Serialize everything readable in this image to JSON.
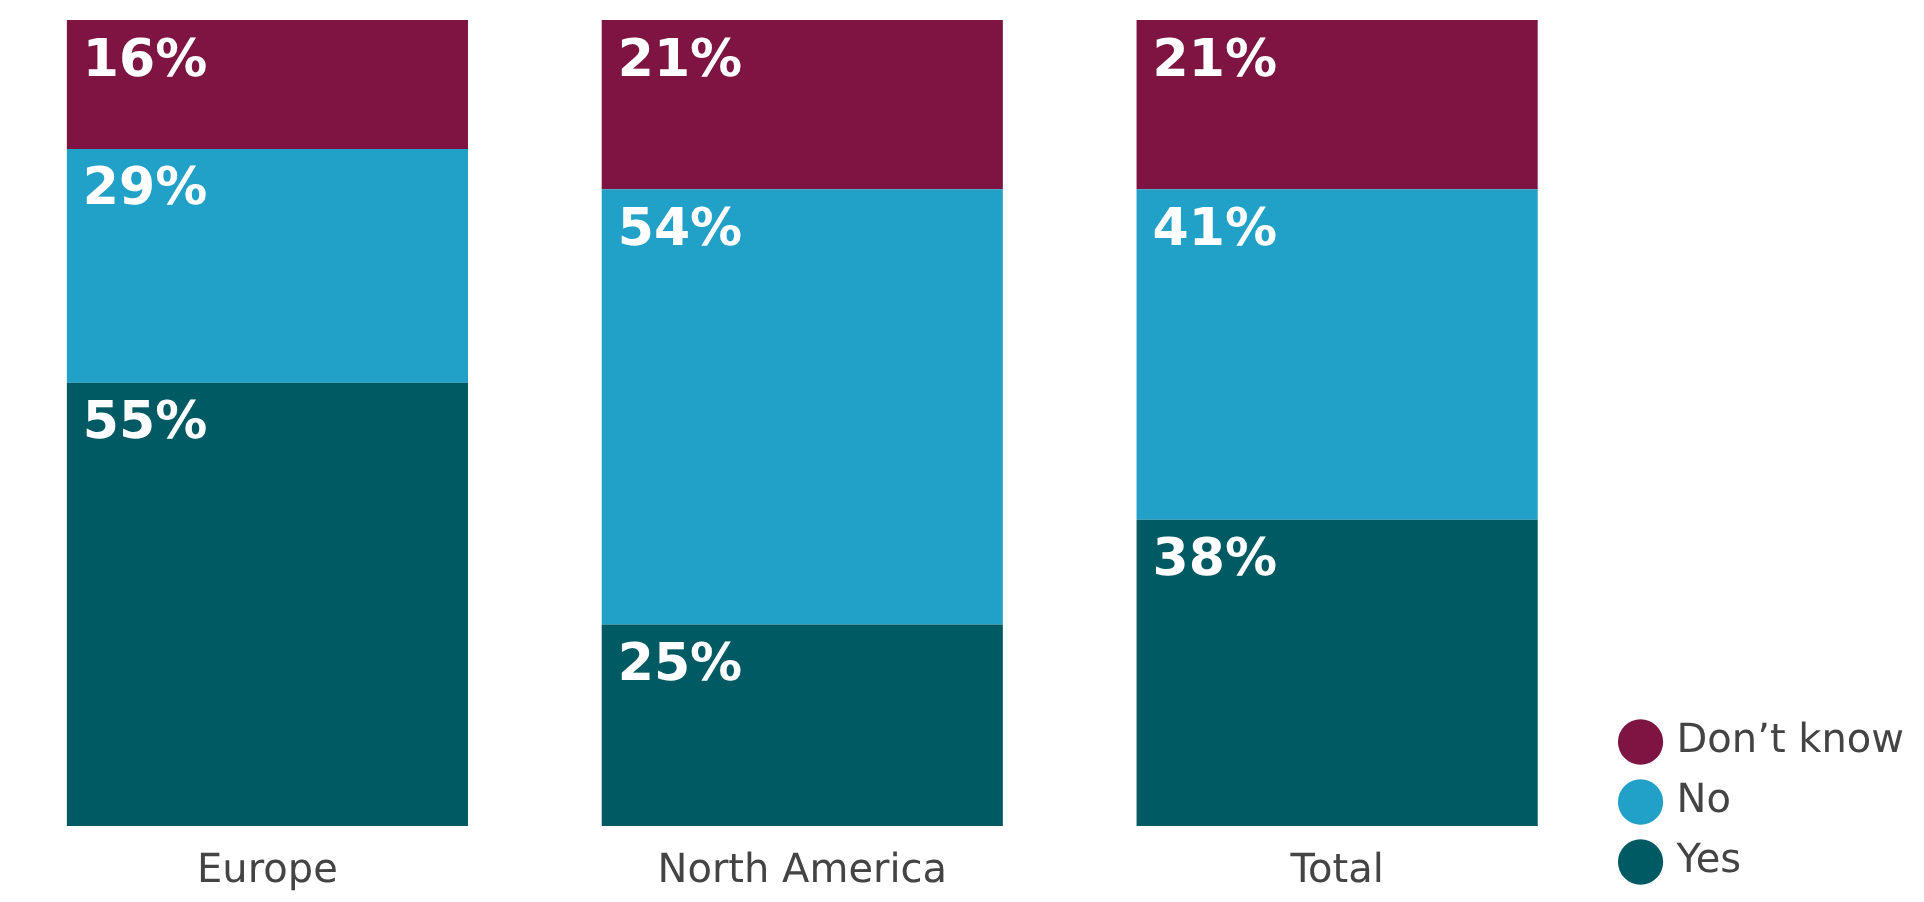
{
  "chart_data": {
    "type": "bar",
    "stacked": true,
    "legend": "bottom right",
    "categories": [
      "Europe",
      "North America",
      "Total"
    ],
    "series": [
      {
        "name": "Yes",
        "color": "#005a64",
        "values": [
          55,
          25,
          38
        ],
        "value_labels": [
          "55%",
          "25%",
          "38%"
        ]
      },
      {
        "name": "No",
        "color": "#21a0c8",
        "values": [
          29,
          54,
          41
        ],
        "value_labels": [
          "29%",
          "54%",
          "41%"
        ]
      },
      {
        "name": "Don’t know",
        "color": "#7d1441",
        "values": [
          16,
          21,
          21
        ],
        "value_labels": [
          "16%",
          "21%",
          "21%"
        ]
      }
    ]
  }
}
